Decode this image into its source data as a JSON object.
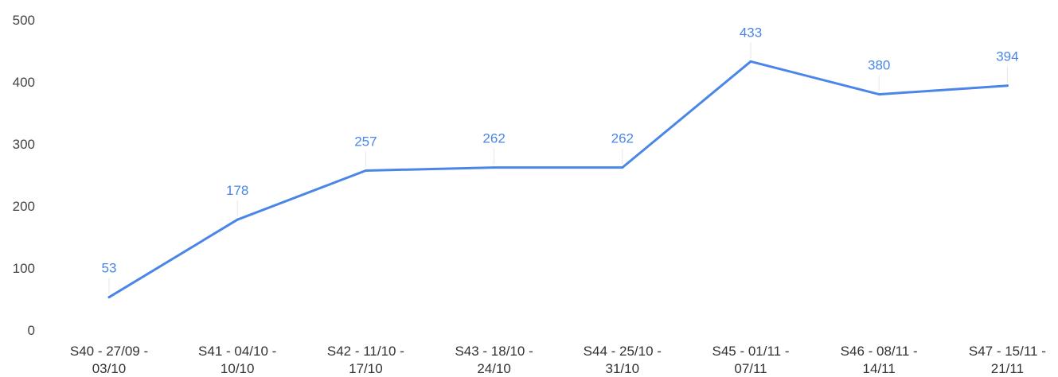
{
  "chart_data": {
    "type": "line",
    "title": "",
    "xlabel": "",
    "ylabel": "",
    "ylim": [
      0,
      500
    ],
    "yticks": [
      "0",
      "100",
      "200",
      "300",
      "400",
      "500"
    ],
    "grid": false,
    "legend": "none",
    "categories": [
      [
        "S40 - 27/09 -",
        "03/10"
      ],
      [
        "S41 - 04/10 -",
        "10/10"
      ],
      [
        "S42 - 11/10 -",
        "17/10"
      ],
      [
        "S43 - 18/10 -",
        "24/10"
      ],
      [
        "S44 - 25/10 -",
        "31/10"
      ],
      [
        "S45 - 01/11 -",
        "07/11"
      ],
      [
        "S46 - 08/11 -",
        "14/11"
      ],
      [
        "S47 - 15/11 -",
        "21/11"
      ]
    ],
    "series": [
      {
        "values": [
          53,
          178,
          257,
          262,
          262,
          433,
          380,
          394
        ],
        "color": "#4a86e8"
      }
    ]
  }
}
